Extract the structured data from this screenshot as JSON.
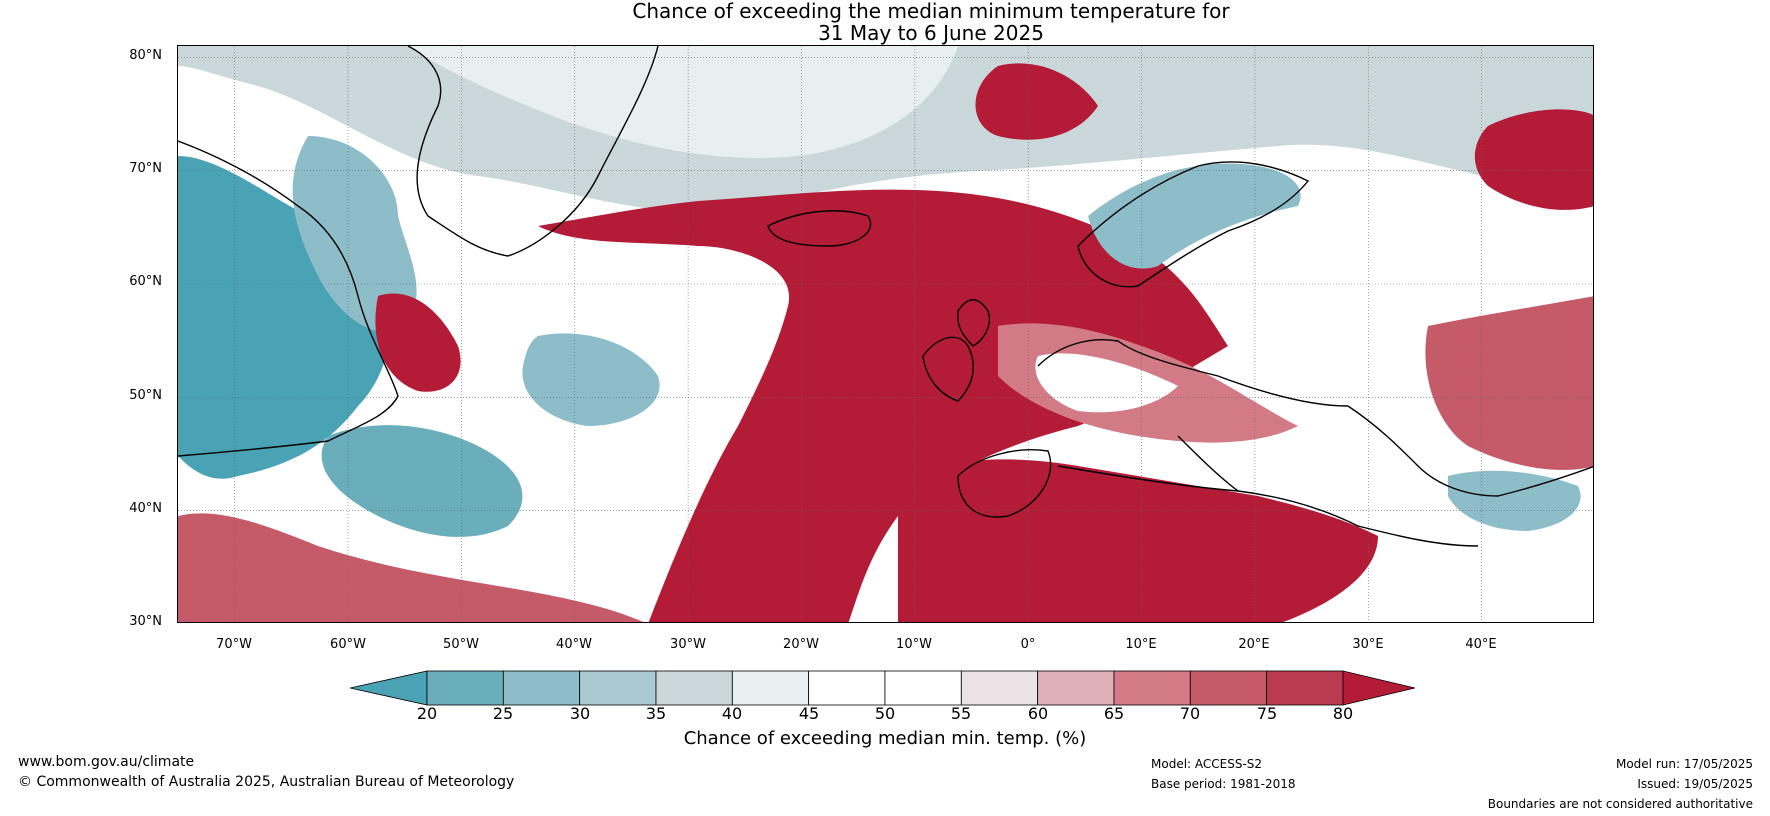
{
  "title": {
    "line1": "Chance of exceeding the median minimum temperature for",
    "line2": "31 May to 6 June 2025"
  },
  "map": {
    "lat_labels": [
      "80°N",
      "70°N",
      "60°N",
      "50°N",
      "40°N",
      "30°N"
    ],
    "lat_values": [
      80,
      70,
      60,
      50,
      40,
      30
    ],
    "lon_labels": [
      "70°W",
      "60°W",
      "50°W",
      "40°W",
      "30°W",
      "20°W",
      "10°W",
      "0°",
      "10°E",
      "20°E",
      "30°E",
      "40°E"
    ],
    "lon_values": [
      -70,
      -60,
      -50,
      -40,
      -30,
      -20,
      -10,
      0,
      10,
      20,
      30,
      40
    ],
    "lon_range": [
      -75,
      50
    ],
    "lat_range": [
      30,
      81
    ],
    "gridlines": true
  },
  "colorbar": {
    "ticks": [
      "20",
      "25",
      "30",
      "35",
      "40",
      "45",
      "50",
      "55",
      "60",
      "65",
      "70",
      "75",
      "80"
    ],
    "colors": [
      "#4aa3b5",
      "#6aaebc",
      "#8cbdc8",
      "#a9c9d0",
      "#cad7db",
      "#e8eff1",
      "#ffffff",
      "#ffffff",
      "#ebe3e5",
      "#e0b0b7",
      "#d27a85",
      "#c55a69",
      "#ba3a50",
      "#b31b36"
    ],
    "label": "Chance of exceeding median min. temp. (%)"
  },
  "footer": {
    "left_line1": "www.bom.gov.au/climate",
    "left_line2": "© Commonwealth of Australia 2025, Australian Bureau of Meteorology",
    "model": "Model: ACCESS-S2",
    "base_period": "Base period: 1981-2018",
    "model_run": "Model run: 17/05/2025",
    "issued": "Issued: 19/05/2025",
    "disclaimer": "Boundaries are not considered authoritative"
  }
}
